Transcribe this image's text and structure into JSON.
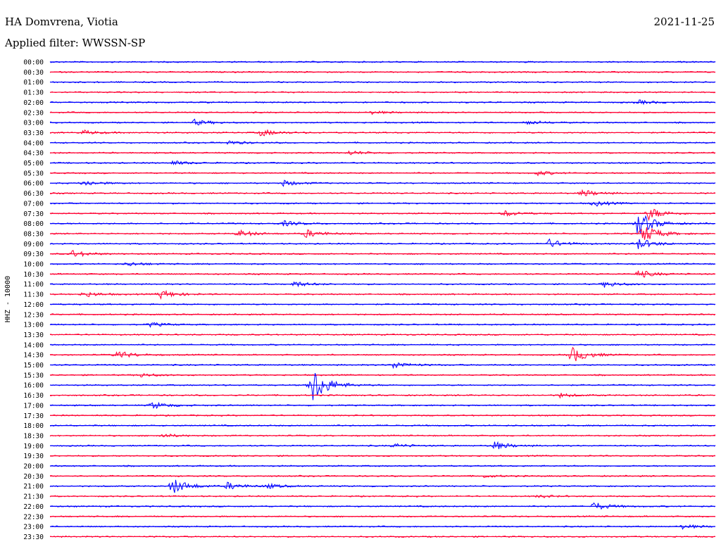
{
  "header": {
    "station": "HA Domvrena, Viotia",
    "date": "2021-11-25",
    "filter": "Applied filter: WWSSN-SP"
  },
  "chart_data": {
    "type": "line",
    "ylabel": "HHZ - 10000",
    "colors": {
      "odd_trace": "#0000ff",
      "even_trace": "#ff0033",
      "text": "#000000"
    },
    "rows": [
      {
        "label": "00:00",
        "bursts": []
      },
      {
        "label": "00:30",
        "bursts": []
      },
      {
        "label": "01:00",
        "bursts": []
      },
      {
        "label": "01:30",
        "bursts": []
      },
      {
        "label": "02:00",
        "bursts": [
          {
            "min": 26.5,
            "amp": 3
          }
        ]
      },
      {
        "label": "02:30",
        "bursts": [
          {
            "min": 14.5,
            "amp": 2
          }
        ]
      },
      {
        "label": "03:00",
        "bursts": [
          {
            "min": 6.5,
            "amp": 4
          },
          {
            "min": 21.5,
            "amp": 3
          }
        ]
      },
      {
        "label": "03:30",
        "bursts": [
          {
            "min": 1.5,
            "amp": 3
          },
          {
            "min": 9.5,
            "amp": 5
          }
        ]
      },
      {
        "label": "04:00",
        "bursts": [
          {
            "min": 8.0,
            "amp": 3
          }
        ]
      },
      {
        "label": "04:30",
        "bursts": [
          {
            "min": 13.5,
            "amp": 3
          }
        ]
      },
      {
        "label": "05:00",
        "bursts": [
          {
            "min": 5.5,
            "amp": 3
          }
        ]
      },
      {
        "label": "05:30",
        "bursts": [
          {
            "min": 22.0,
            "amp": 3
          }
        ]
      },
      {
        "label": "06:00",
        "bursts": [
          {
            "min": 1.5,
            "amp": 4
          },
          {
            "min": 10.5,
            "amp": 4
          }
        ]
      },
      {
        "label": "06:30",
        "bursts": [
          {
            "min": 24.0,
            "amp": 5
          }
        ]
      },
      {
        "label": "07:00",
        "bursts": [
          {
            "min": 24.5,
            "amp": 4
          }
        ]
      },
      {
        "label": "07:30",
        "bursts": [
          {
            "min": 20.5,
            "amp": 4
          },
          {
            "min": 27.0,
            "amp": 9
          }
        ]
      },
      {
        "label": "08:00",
        "bursts": [
          {
            "min": 10.5,
            "amp": 4
          },
          {
            "min": 26.5,
            "amp": 18
          }
        ]
      },
      {
        "label": "08:30",
        "bursts": [
          {
            "min": 8.5,
            "amp": 5
          },
          {
            "min": 11.5,
            "amp": 6
          },
          {
            "min": 26.7,
            "amp": 14
          }
        ]
      },
      {
        "label": "09:00",
        "bursts": [
          {
            "min": 22.5,
            "amp": 6
          },
          {
            "min": 26.5,
            "amp": 8
          }
        ]
      },
      {
        "label": "09:30",
        "bursts": [
          {
            "min": 1.0,
            "amp": 5
          }
        ]
      },
      {
        "label": "10:00",
        "bursts": [
          {
            "min": 3.5,
            "amp": 3
          }
        ]
      },
      {
        "label": "10:30",
        "bursts": [
          {
            "min": 26.5,
            "amp": 6
          }
        ]
      },
      {
        "label": "11:00",
        "bursts": [
          {
            "min": 11.0,
            "amp": 4
          },
          {
            "min": 25.0,
            "amp": 4
          }
        ]
      },
      {
        "label": "11:30",
        "bursts": [
          {
            "min": 1.5,
            "amp": 4
          },
          {
            "min": 5.0,
            "amp": 6
          }
        ]
      },
      {
        "label": "12:00",
        "bursts": []
      },
      {
        "label": "12:30",
        "bursts": []
      },
      {
        "label": "13:00",
        "bursts": [
          {
            "min": 4.5,
            "amp": 3
          }
        ]
      },
      {
        "label": "13:30",
        "bursts": []
      },
      {
        "label": "14:00",
        "bursts": []
      },
      {
        "label": "14:30",
        "bursts": [
          {
            "min": 3.0,
            "amp": 6
          },
          {
            "min": 23.5,
            "amp": 12
          }
        ]
      },
      {
        "label": "15:00",
        "bursts": [
          {
            "min": 15.5,
            "amp": 5
          }
        ]
      },
      {
        "label": "15:30",
        "bursts": [
          {
            "min": 4.0,
            "amp": 3
          }
        ]
      },
      {
        "label": "16:00",
        "bursts": [
          {
            "min": 11.8,
            "amp": 28
          }
        ]
      },
      {
        "label": "16:30",
        "bursts": [
          {
            "min": 23.0,
            "amp": 3
          }
        ]
      },
      {
        "label": "17:00",
        "bursts": [
          {
            "min": 4.6,
            "amp": 5
          }
        ]
      },
      {
        "label": "17:30",
        "bursts": []
      },
      {
        "label": "18:00",
        "bursts": []
      },
      {
        "label": "18:30",
        "bursts": [
          {
            "min": 5.0,
            "amp": 3
          }
        ]
      },
      {
        "label": "19:00",
        "bursts": [
          {
            "min": 15.5,
            "amp": 3
          },
          {
            "min": 20.0,
            "amp": 6
          }
        ]
      },
      {
        "label": "19:30",
        "bursts": []
      },
      {
        "label": "20:00",
        "bursts": []
      },
      {
        "label": "20:30",
        "bursts": [
          {
            "min": 19.5,
            "amp": 2
          }
        ]
      },
      {
        "label": "21:00",
        "bursts": [
          {
            "min": 5.5,
            "amp": 12
          },
          {
            "min": 8.0,
            "amp": 5
          },
          {
            "min": 9.8,
            "amp": 3
          }
        ]
      },
      {
        "label": "21:30",
        "bursts": [
          {
            "min": 22.0,
            "amp": 2
          }
        ]
      },
      {
        "label": "22:00",
        "bursts": [
          {
            "min": 24.5,
            "amp": 6
          }
        ]
      },
      {
        "label": "22:30",
        "bursts": []
      },
      {
        "label": "23:00",
        "bursts": [
          {
            "min": 28.5,
            "amp": 3
          }
        ]
      },
      {
        "label": "23:30",
        "bursts": []
      }
    ]
  }
}
